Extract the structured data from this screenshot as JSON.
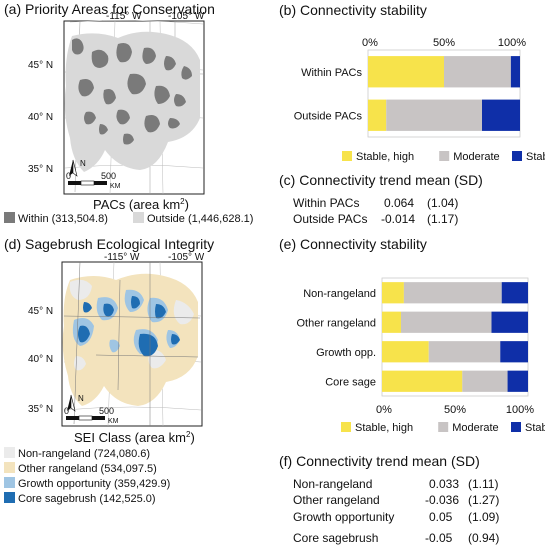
{
  "panel_a": {
    "title": "(a) Priority Areas for Conservation",
    "lon_ticks": [
      "-115° W",
      "-105° W"
    ],
    "lat_ticks": [
      "45° N",
      "40° N",
      "35° N"
    ],
    "scale_zero": "0",
    "scale_500": "500",
    "scale_unit": "KM",
    "north": "N",
    "legend_title": "PACs (area km",
    "legend_sup": "2",
    "legend_close": ")",
    "legend": [
      {
        "label": "Within (313,504.8)",
        "color": "#7a7a7a"
      },
      {
        "label": "Outside (1,446,628.1)",
        "color": "#d9d9d9"
      }
    ]
  },
  "panel_d": {
    "title": "(d) Sagebrush Ecological Integrity",
    "lon_ticks": [
      "-115° W",
      "-105° W"
    ],
    "lat_ticks": [
      "45° N",
      "40° N",
      "35° N"
    ],
    "scale_zero": "0",
    "scale_500": "500",
    "scale_unit": "KM",
    "north": "N",
    "legend_title": "SEI Class (area km",
    "legend_sup": "2",
    "legend_close": ")",
    "legend": [
      {
        "label": "Non-rangeland (724,080.6)",
        "color": "#ebebeb"
      },
      {
        "label": "Other rangeland (534,097.5)",
        "color": "#f3e3bd"
      },
      {
        "label": "Growth opportunity (359,429.9)",
        "color": "#9fc5e3"
      },
      {
        "label": "Core sagebrush (142,525.0)",
        "color": "#1f6db2"
      }
    ]
  },
  "panel_c": {
    "title": "(c) Connectivity trend mean (SD)",
    "rows": [
      {
        "label": "Within PACs",
        "mean": "0.064",
        "sd": "(1.04)"
      },
      {
        "label": "Outside PACs",
        "mean": "-0.014",
        "sd": "(1.17)"
      }
    ]
  },
  "panel_f": {
    "title": "(f) Connectivity trend mean (SD)",
    "rows": [
      {
        "label": "Non-rangeland",
        "mean": "0.033",
        "sd": "(1.11)"
      },
      {
        "label": "Other rangeland",
        "mean": "-0.036",
        "sd": "(1.27)"
      },
      {
        "label": "Growth opportunity",
        "mean": "0.05",
        "sd": "(1.09)"
      },
      {
        "label": "Core sagebrush",
        "mean": "-0.05",
        "sd": "(0.94)"
      }
    ]
  },
  "chart_data": [
    {
      "type": "bar",
      "orientation": "horizontal",
      "stacked": true,
      "title": "(b) Connectivity stability",
      "categories": [
        "Within PACs",
        "Outside PACs"
      ],
      "series": [
        {
          "name": "Stable, high",
          "color": "#f7e34b",
          "values": [
            50,
            12
          ]
        },
        {
          "name": "Moderate",
          "color": "#c8c4c4",
          "values": [
            44,
            63
          ]
        },
        {
          "name": "Stable, low",
          "color": "#0f2fa8",
          "values": [
            6,
            25
          ]
        }
      ],
      "x_ticks": [
        "0%",
        "50%",
        "100%"
      ],
      "xlim": [
        0,
        100
      ],
      "tick_position": "top",
      "legend_position": "bottom"
    },
    {
      "type": "bar",
      "orientation": "horizontal",
      "stacked": true,
      "title": "(e) Connectivity stability",
      "categories": [
        "Non-rangeland",
        "Other rangeland",
        "Growth opp.",
        "Core sage"
      ],
      "series": [
        {
          "name": "Stable, high",
          "color": "#f7e34b",
          "values": [
            15,
            13,
            32,
            55
          ]
        },
        {
          "name": "Moderate",
          "color": "#c8c4c4",
          "values": [
            67,
            62,
            49,
            31
          ]
        },
        {
          "name": "Stable, low",
          "color": "#0f2fa8",
          "values": [
            18,
            25,
            19,
            14
          ]
        }
      ],
      "x_ticks": [
        "0%",
        "50%",
        "100%"
      ],
      "xlim": [
        0,
        100
      ],
      "tick_position": "bottom",
      "legend_position": "bottom"
    }
  ]
}
